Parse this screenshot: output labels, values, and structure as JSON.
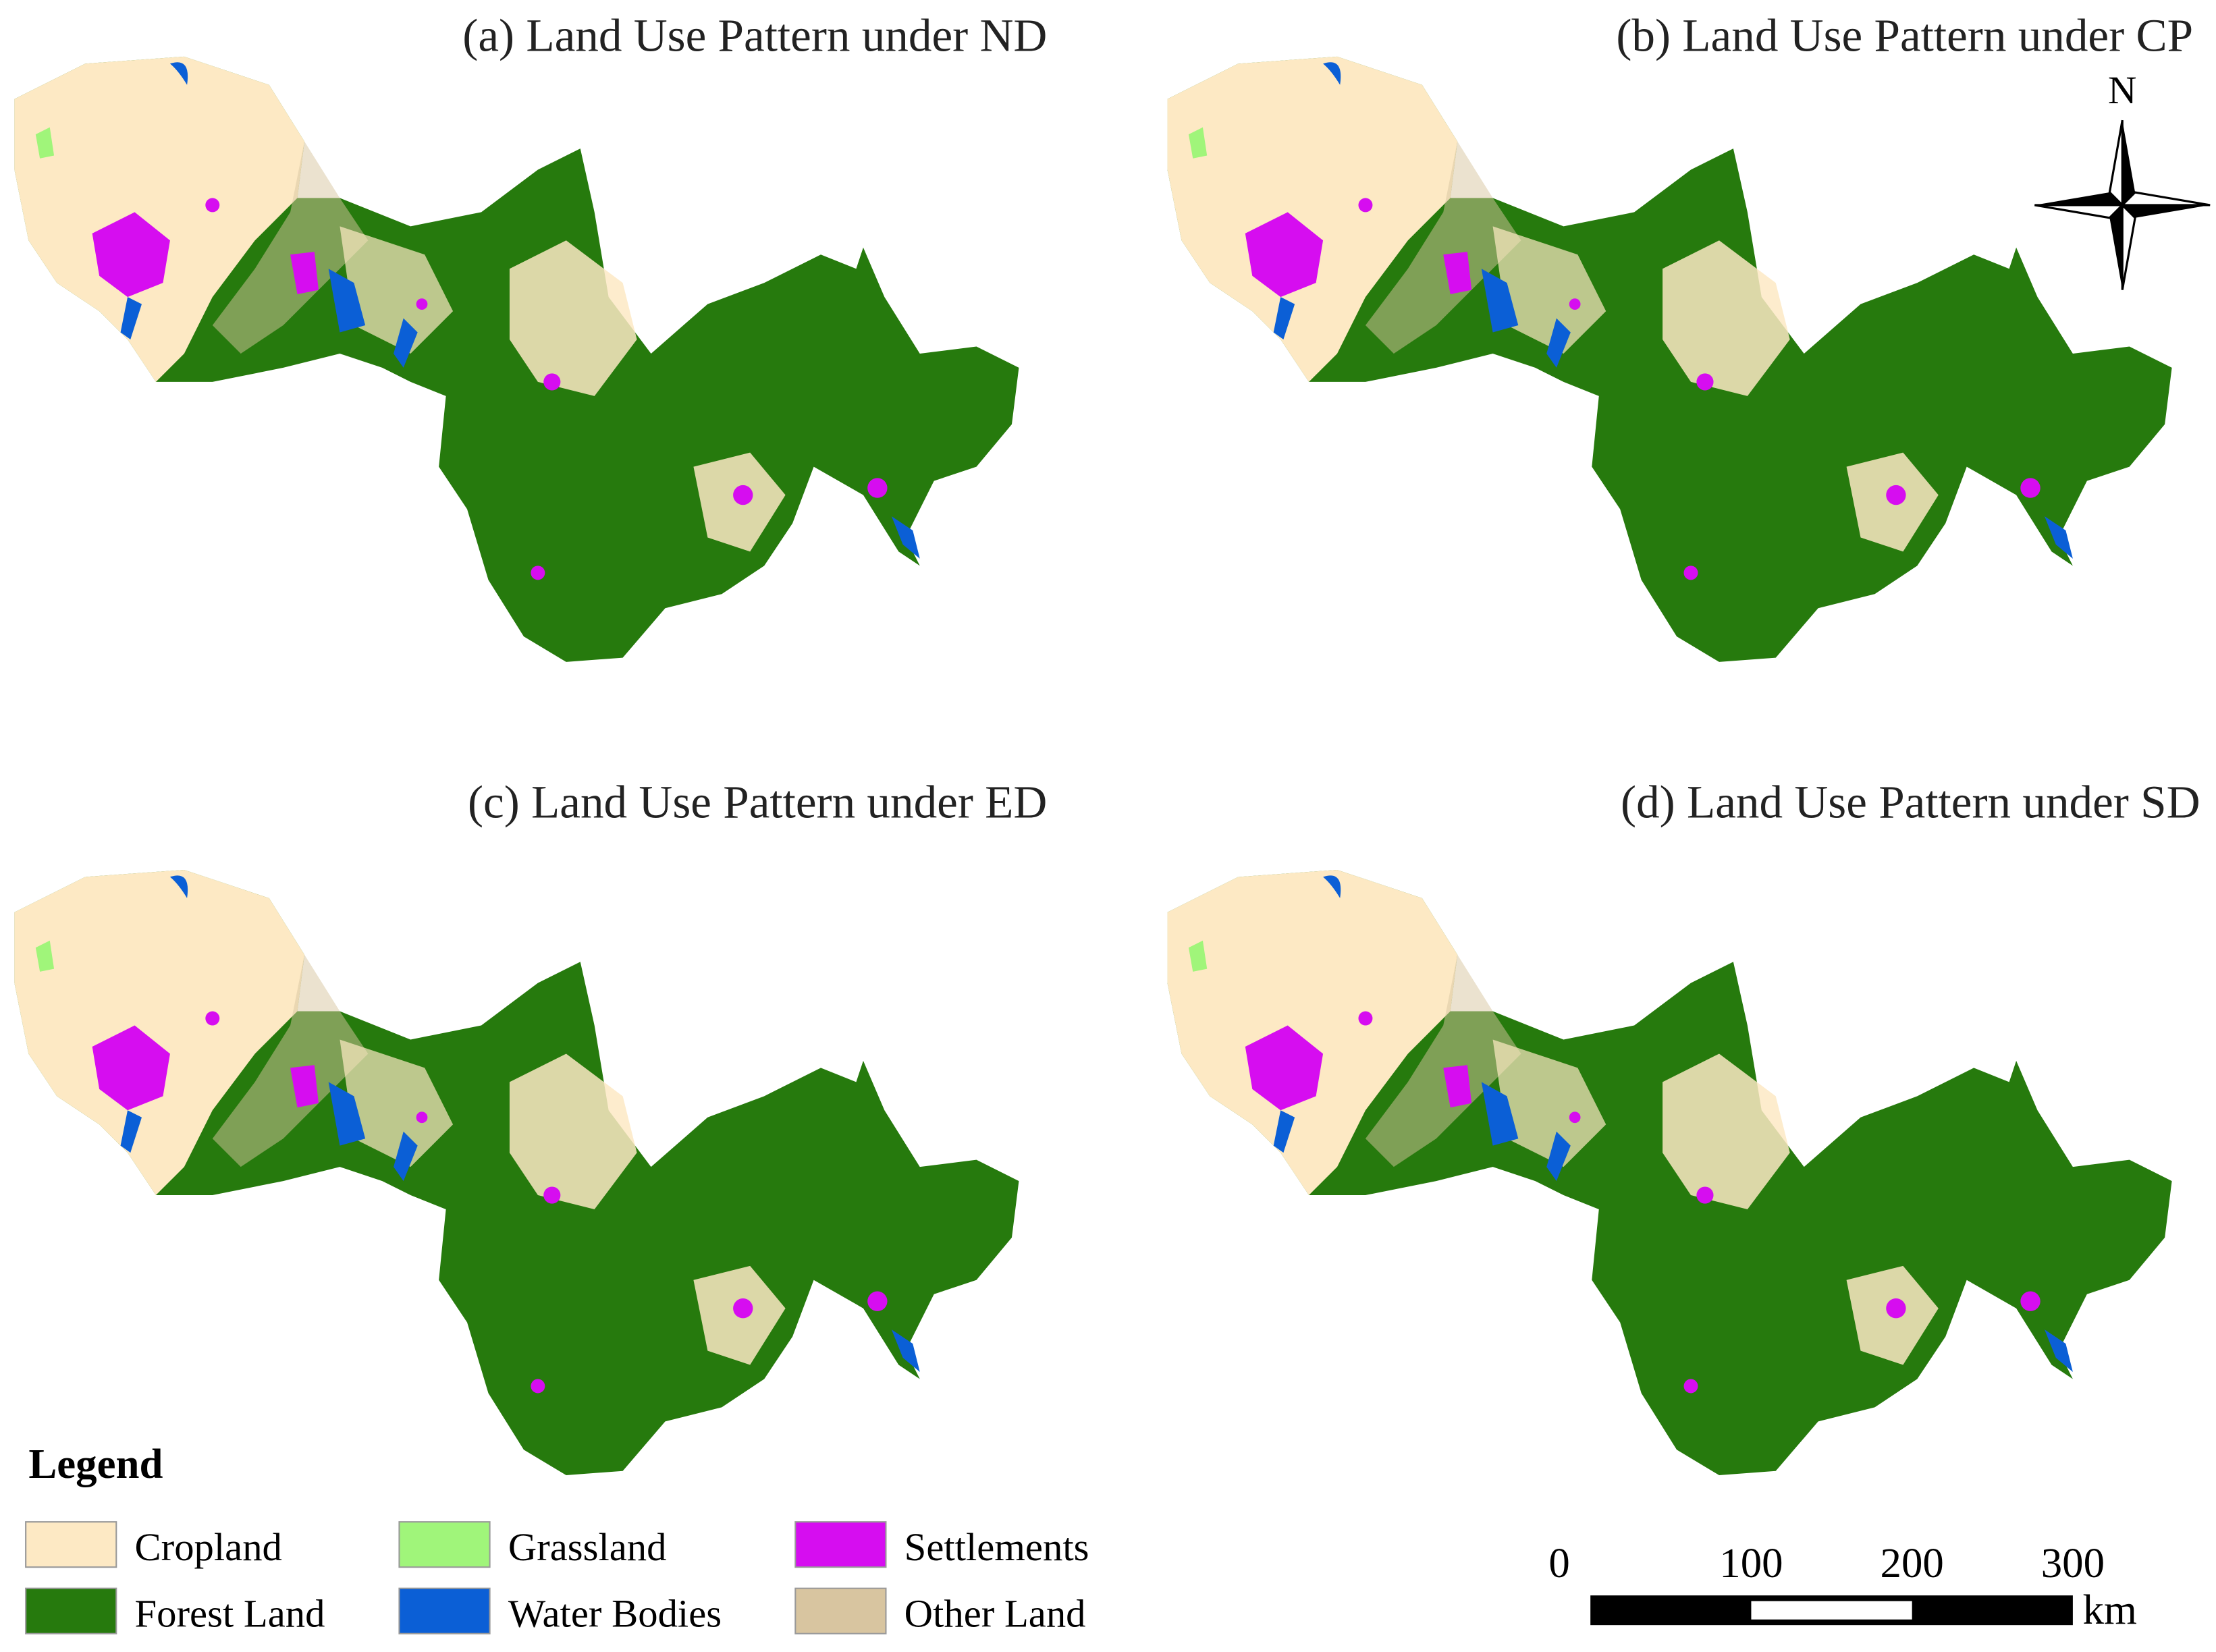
{
  "panels": [
    {
      "title": "(a) Land Use Pattern under ND"
    },
    {
      "title": "(b) Land Use Pattern under CP"
    },
    {
      "title": "(c) Land Use Pattern under ED"
    },
    {
      "title": "(d) Land Use Pattern under SD"
    }
  ],
  "north_arrow": {
    "label": "N"
  },
  "legend": {
    "title": "Legend",
    "items": [
      {
        "label": "Cropland",
        "color": "#fde9c4"
      },
      {
        "label": "Forest Land",
        "color": "#267a0d"
      },
      {
        "label": "Grassland",
        "color": "#a0f57a"
      },
      {
        "label": "Water Bodies",
        "color": "#0b5fd6"
      },
      {
        "label": "Settlements",
        "color": "#d60df0"
      },
      {
        "label": "Other Land",
        "color": "#d8c5a0"
      }
    ]
  },
  "scale_bar": {
    "ticks": [
      0,
      100,
      200,
      300
    ],
    "unit": "km"
  }
}
